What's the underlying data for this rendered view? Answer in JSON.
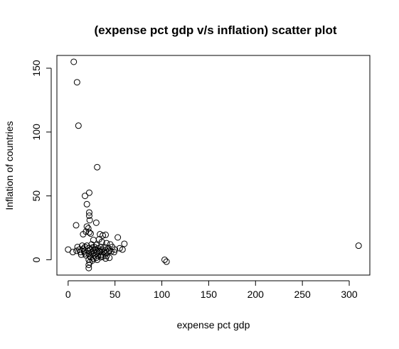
{
  "chart_data": {
    "type": "scatter",
    "title": "(expense pct gdp v/s inflation) scatter plot",
    "xlabel": "expense pct gdp",
    "ylabel": "Inflation of countries",
    "xlim": [
      -12,
      322
    ],
    "ylim": [
      -12,
      160
    ],
    "xticks": [
      0,
      50,
      100,
      150,
      200,
      250,
      300
    ],
    "yticks": [
      0,
      50,
      100,
      150
    ],
    "grid": false,
    "marker": "open-circle",
    "color": "#000000",
    "series": [
      {
        "points": [
          [
            6,
            155
          ],
          [
            9.5,
            139
          ],
          [
            11,
            105
          ],
          [
            31,
            72.5
          ],
          [
            22.5,
            52.5
          ],
          [
            18,
            50
          ],
          [
            20,
            43.5
          ],
          [
            22.5,
            37
          ],
          [
            22.5,
            34.5
          ],
          [
            23,
            31
          ],
          [
            30,
            29
          ],
          [
            8.5,
            27
          ],
          [
            20,
            26
          ],
          [
            21.5,
            24.5
          ],
          [
            19,
            22
          ],
          [
            22.5,
            21.5
          ],
          [
            24,
            20.5
          ],
          [
            16,
            20
          ],
          [
            34,
            20
          ],
          [
            37,
            19
          ],
          [
            40,
            19.5
          ],
          [
            53,
            17.5
          ],
          [
            27,
            15.5
          ],
          [
            33,
            16
          ],
          [
            36,
            14
          ],
          [
            41,
            13
          ],
          [
            60,
            12.5
          ],
          [
            45,
            12
          ],
          [
            25,
            12
          ],
          [
            30,
            11.5
          ],
          [
            15,
            11
          ],
          [
            20,
            11
          ],
          [
            10,
            10
          ],
          [
            18,
            10
          ],
          [
            22,
            9
          ],
          [
            26,
            9.5
          ],
          [
            28,
            10
          ],
          [
            32,
            9
          ],
          [
            35,
            10
          ],
          [
            39,
            10
          ],
          [
            43,
            9
          ],
          [
            47,
            10
          ],
          [
            55,
            9
          ],
          [
            12,
            8
          ],
          [
            16,
            8.5
          ],
          [
            24,
            8
          ],
          [
            29,
            8
          ],
          [
            33,
            7
          ],
          [
            36,
            8
          ],
          [
            40,
            7.5
          ],
          [
            44,
            7
          ],
          [
            50,
            8
          ],
          [
            58,
            8
          ],
          [
            0,
            8
          ],
          [
            5,
            6
          ],
          [
            9,
            7
          ],
          [
            13,
            6
          ],
          [
            17,
            6.5
          ],
          [
            21,
            7
          ],
          [
            25,
            6
          ],
          [
            27,
            7
          ],
          [
            31,
            6
          ],
          [
            34,
            6.5
          ],
          [
            38,
            6
          ],
          [
            42,
            6
          ],
          [
            46,
            6.5
          ],
          [
            49,
            6
          ],
          [
            18,
            5
          ],
          [
            22,
            5
          ],
          [
            26,
            4.5
          ],
          [
            30,
            5
          ],
          [
            35,
            4
          ],
          [
            39,
            5
          ],
          [
            14,
            4
          ],
          [
            19,
            3.5
          ],
          [
            23,
            3
          ],
          [
            28,
            3.5
          ],
          [
            32,
            3
          ],
          [
            37,
            2.5
          ],
          [
            41,
            3
          ],
          [
            24,
            2
          ],
          [
            30,
            1.5
          ],
          [
            35,
            2
          ],
          [
            27,
            1
          ],
          [
            40,
            1
          ],
          [
            44,
            1.5
          ],
          [
            22,
            0
          ],
          [
            26,
            -0.5
          ],
          [
            31,
            0
          ],
          [
            23,
            -2
          ],
          [
            22,
            -4
          ],
          [
            22,
            -6.5
          ],
          [
            103,
            0
          ],
          [
            105,
            -1.5
          ],
          [
            310,
            11
          ]
        ]
      }
    ]
  }
}
